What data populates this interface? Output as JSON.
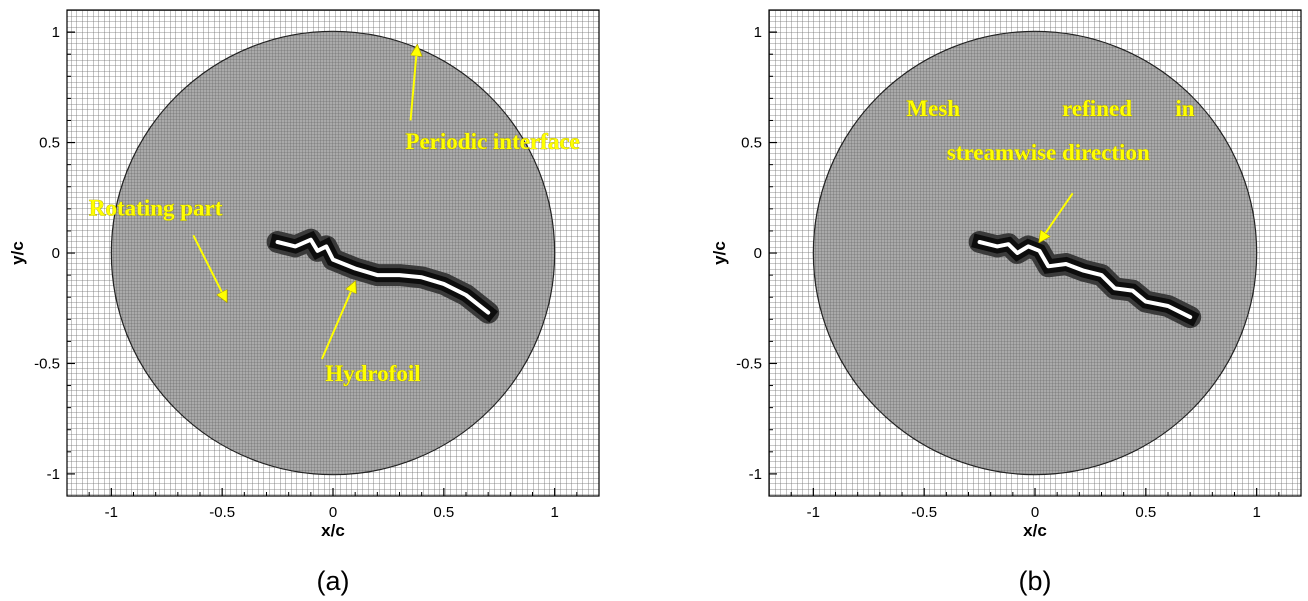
{
  "chart_data": [
    {
      "type": "mesh",
      "panel_label": "(a)",
      "xlabel": "x/c",
      "ylabel": "y/c",
      "xlim": [
        -1.2,
        1.2
      ],
      "ylim": [
        -1.1,
        1.1
      ],
      "x_ticks": [
        "-1",
        "-0.5",
        "0",
        "0.5",
        "1"
      ],
      "y_ticks": [
        "1",
        "0.5",
        "0",
        "-0.5",
        "-1"
      ],
      "rotating_region_radius": 1.0,
      "hydrofoil": [
        [
          -0.25,
          0.05
        ],
        [
          -0.17,
          0.03
        ],
        [
          -0.1,
          0.06
        ],
        [
          -0.07,
          0.01
        ],
        [
          -0.03,
          0.03
        ],
        [
          0.0,
          -0.03
        ],
        [
          0.1,
          -0.07
        ],
        [
          0.2,
          -0.1
        ],
        [
          0.3,
          -0.1
        ],
        [
          0.4,
          -0.11
        ],
        [
          0.5,
          -0.14
        ],
        [
          0.6,
          -0.19
        ],
        [
          0.7,
          -0.27
        ]
      ],
      "annotations": [
        {
          "text": "Periodic interface",
          "text_at": [
            0.72,
            0.47
          ],
          "arrow_from": [
            0.35,
            0.6
          ],
          "arrow_to": [
            0.38,
            0.94
          ]
        },
        {
          "text": "Rotating part",
          "text_at": [
            -0.8,
            0.17
          ],
          "arrow_from": [
            -0.63,
            0.08
          ],
          "arrow_to": [
            -0.48,
            -0.22
          ]
        },
        {
          "text": "Hydrofoil",
          "text_at": [
            0.18,
            -0.58
          ],
          "arrow_from": [
            -0.05,
            -0.48
          ],
          "arrow_to": [
            0.1,
            -0.13
          ]
        }
      ]
    },
    {
      "type": "mesh",
      "panel_label": "(b)",
      "xlabel": "x/c",
      "ylabel": "y/c",
      "xlim": [
        -1.2,
        1.2
      ],
      "ylim": [
        -1.1,
        1.1
      ],
      "x_ticks": [
        "-1",
        "-0.5",
        "0",
        "0.5",
        "1"
      ],
      "y_ticks": [
        "1",
        "0.5",
        "0",
        "-0.5",
        "-1"
      ],
      "rotating_region_radius": 1.0,
      "hydrofoil": [
        [
          -0.25,
          0.05
        ],
        [
          -0.17,
          0.03
        ],
        [
          -0.12,
          0.04
        ],
        [
          -0.08,
          0.0
        ],
        [
          -0.03,
          0.03
        ],
        [
          0.02,
          0.01
        ],
        [
          0.06,
          -0.06
        ],
        [
          0.14,
          -0.05
        ],
        [
          0.22,
          -0.08
        ],
        [
          0.3,
          -0.1
        ],
        [
          0.36,
          -0.16
        ],
        [
          0.44,
          -0.17
        ],
        [
          0.5,
          -0.22
        ],
        [
          0.6,
          -0.24
        ],
        [
          0.7,
          -0.29
        ]
      ],
      "annotations": [
        {
          "text_lines": [
            "Mesh",
            "refined",
            "in",
            "streamwise direction"
          ],
          "text_at": [
            0.28,
            0.42
          ],
          "arrow_from": [
            0.17,
            0.27
          ],
          "arrow_to": [
            0.02,
            0.05
          ]
        }
      ]
    }
  ]
}
